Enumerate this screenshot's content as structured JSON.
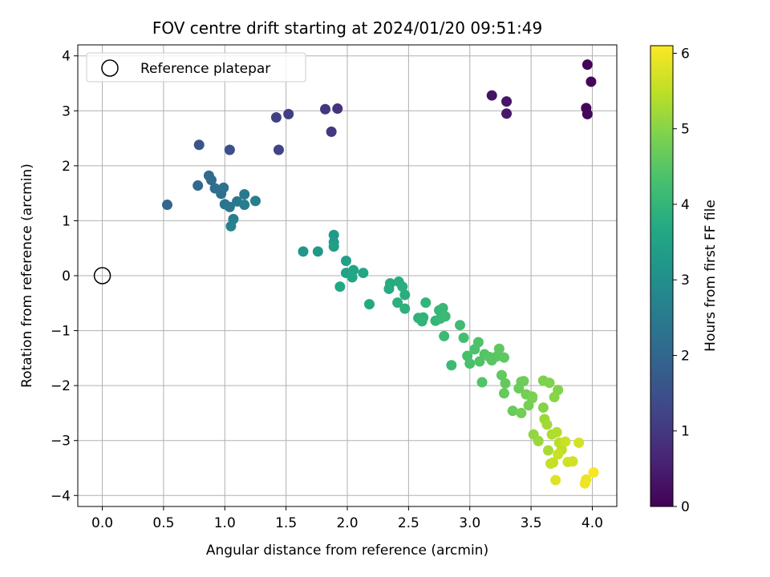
{
  "chart_data": {
    "type": "scatter",
    "title": "FOV centre drift starting at 2024/01/20 09:51:49",
    "xlabel": "Angular distance from reference (arcmin)",
    "ylabel": "Rotation from reference (arcmin)",
    "xlim": [
      -0.2,
      4.2
    ],
    "ylim": [
      -4.2,
      4.2
    ],
    "xticks": [
      0.0,
      0.5,
      1.0,
      1.5,
      2.0,
      2.5,
      3.0,
      3.5,
      4.0
    ],
    "xtick_labels": [
      "0.0",
      "0.5",
      "1.0",
      "1.5",
      "2.0",
      "2.5",
      "3.0",
      "3.5",
      "4.0"
    ],
    "yticks": [
      -4,
      -3,
      -2,
      -1,
      0,
      1,
      2,
      3,
      4
    ],
    "ytick_labels": [
      "−4",
      "−3",
      "−2",
      "−1",
      "0",
      "1",
      "2",
      "3",
      "4"
    ],
    "grid": true,
    "legend": {
      "position": "top-left",
      "entries": [
        "Reference platepar"
      ]
    },
    "reference_point": {
      "x": 0.0,
      "y": 0.0,
      "label": "Reference platepar"
    },
    "colorbar": {
      "label": "Hours from first FF file",
      "range": [
        0,
        6.1
      ],
      "ticks": [
        0,
        1,
        2,
        3,
        4,
        5,
        6
      ],
      "colormap": "viridis"
    },
    "series": [
      {
        "points": [
          [
            3.96,
            3.84,
            0.05
          ],
          [
            3.99,
            3.53,
            0.08
          ],
          [
            3.95,
            3.05,
            0.1
          ],
          [
            3.96,
            2.94,
            0.12
          ],
          [
            3.18,
            3.28,
            0.3
          ],
          [
            3.3,
            3.17,
            0.35
          ],
          [
            3.3,
            2.95,
            0.4
          ],
          [
            1.92,
            3.04,
            0.9
          ],
          [
            1.82,
            3.03,
            0.95
          ],
          [
            1.87,
            2.62,
            1.0
          ],
          [
            1.52,
            2.94,
            1.1
          ],
          [
            1.42,
            2.88,
            1.15
          ],
          [
            1.44,
            2.29,
            1.2
          ],
          [
            1.04,
            2.29,
            1.5
          ],
          [
            0.79,
            2.38,
            1.6
          ],
          [
            0.53,
            1.29,
            2.0
          ],
          [
            0.78,
            1.64,
            2.05
          ],
          [
            0.87,
            1.82,
            2.1
          ],
          [
            0.89,
            1.74,
            2.15
          ],
          [
            0.92,
            1.59,
            2.2
          ],
          [
            0.97,
            1.49,
            2.25
          ],
          [
            0.99,
            1.6,
            2.3
          ],
          [
            1.0,
            1.3,
            2.35
          ],
          [
            1.04,
            1.25,
            2.4
          ],
          [
            1.1,
            1.35,
            2.45
          ],
          [
            1.16,
            1.48,
            2.5
          ],
          [
            1.16,
            1.29,
            2.55
          ],
          [
            1.25,
            1.36,
            2.6
          ],
          [
            1.07,
            1.03,
            2.65
          ],
          [
            1.05,
            0.9,
            2.7
          ],
          [
            1.64,
            0.44,
            3.2
          ],
          [
            1.76,
            0.44,
            3.25
          ],
          [
            1.89,
            0.74,
            3.3
          ],
          [
            1.89,
            0.61,
            3.35
          ],
          [
            1.89,
            0.53,
            3.4
          ],
          [
            1.99,
            0.27,
            3.45
          ],
          [
            1.99,
            0.05,
            3.5
          ],
          [
            2.05,
            0.1,
            3.55
          ],
          [
            2.04,
            -0.03,
            3.6
          ],
          [
            2.13,
            0.05,
            3.62
          ],
          [
            1.94,
            -0.2,
            3.65
          ],
          [
            2.18,
            -0.52,
            3.7
          ],
          [
            2.35,
            -0.14,
            3.72
          ],
          [
            2.34,
            -0.24,
            3.75
          ],
          [
            2.42,
            -0.11,
            3.78
          ],
          [
            2.45,
            -0.2,
            3.8
          ],
          [
            2.47,
            -0.35,
            3.82
          ],
          [
            2.41,
            -0.49,
            3.85
          ],
          [
            2.47,
            -0.6,
            3.88
          ],
          [
            2.58,
            -0.77,
            3.9
          ],
          [
            2.62,
            -0.76,
            3.92
          ],
          [
            2.61,
            -0.83,
            3.95
          ],
          [
            2.64,
            -0.49,
            3.97
          ],
          [
            2.72,
            -0.82,
            4.0
          ],
          [
            2.75,
            -0.63,
            4.02
          ],
          [
            2.78,
            -0.59,
            4.05
          ],
          [
            2.76,
            -0.78,
            4.07
          ],
          [
            2.8,
            -0.74,
            4.1
          ],
          [
            2.79,
            -1.1,
            4.12
          ],
          [
            2.85,
            -1.63,
            4.15
          ],
          [
            2.92,
            -0.9,
            4.2
          ],
          [
            2.95,
            -1.13,
            4.25
          ],
          [
            2.98,
            -1.46,
            4.3
          ],
          [
            3.0,
            -1.6,
            4.32
          ],
          [
            3.04,
            -1.34,
            4.35
          ],
          [
            3.07,
            -1.21,
            4.38
          ],
          [
            3.08,
            -1.56,
            4.4
          ],
          [
            3.1,
            -1.94,
            4.42
          ],
          [
            3.12,
            -1.43,
            4.45
          ],
          [
            3.16,
            -1.48,
            4.48
          ],
          [
            3.18,
            -1.54,
            4.5
          ],
          [
            3.22,
            -1.47,
            4.52
          ],
          [
            3.24,
            -1.33,
            4.55
          ],
          [
            3.28,
            -1.49,
            4.58
          ],
          [
            3.26,
            -1.81,
            4.6
          ],
          [
            3.29,
            -1.96,
            4.62
          ],
          [
            3.28,
            -2.14,
            4.65
          ],
          [
            3.35,
            -2.46,
            4.68
          ],
          [
            3.4,
            -2.05,
            4.7
          ],
          [
            3.42,
            -1.93,
            4.72
          ],
          [
            3.44,
            -1.92,
            4.75
          ],
          [
            3.42,
            -2.5,
            4.78
          ],
          [
            3.46,
            -2.16,
            4.8
          ],
          [
            3.48,
            -2.36,
            4.82
          ],
          [
            3.51,
            -2.23,
            4.85
          ],
          [
            3.51,
            -2.2,
            4.88
          ],
          [
            3.6,
            -1.91,
            4.9
          ],
          [
            3.65,
            -1.95,
            4.92
          ],
          [
            3.72,
            -2.08,
            4.95
          ],
          [
            3.6,
            -2.4,
            4.98
          ],
          [
            3.69,
            -2.21,
            5.0
          ],
          [
            3.52,
            -2.89,
            5.1
          ],
          [
            3.56,
            -3.01,
            5.15
          ],
          [
            3.61,
            -2.61,
            5.2
          ],
          [
            3.63,
            -2.71,
            5.25
          ],
          [
            3.64,
            -3.18,
            5.3
          ],
          [
            3.67,
            -2.89,
            5.35
          ],
          [
            3.71,
            -2.85,
            5.4
          ],
          [
            3.73,
            -3.04,
            5.45
          ],
          [
            3.75,
            -3.17,
            5.5
          ],
          [
            3.66,
            -3.42,
            5.55
          ],
          [
            3.68,
            -3.4,
            5.58
          ],
          [
            3.72,
            -3.25,
            5.6
          ],
          [
            3.78,
            -3.02,
            5.62
          ],
          [
            3.8,
            -3.39,
            5.65
          ],
          [
            3.84,
            -3.38,
            5.68
          ],
          [
            3.89,
            -3.04,
            5.7
          ],
          [
            3.7,
            -3.72,
            5.8
          ],
          [
            3.95,
            -3.71,
            5.9
          ],
          [
            3.94,
            -3.78,
            5.95
          ],
          [
            4.01,
            -3.58,
            6.05
          ]
        ]
      }
    ]
  }
}
